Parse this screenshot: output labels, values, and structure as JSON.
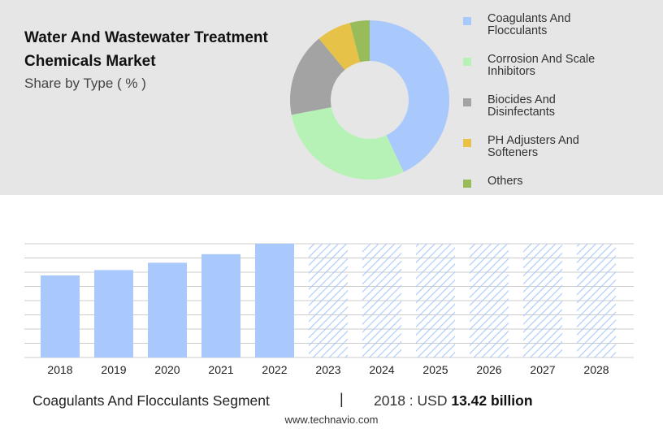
{
  "header": {
    "title": "Water And Wastewater Treatment Chemicals Market",
    "subtitle": "Share by Type ( % )"
  },
  "colors": {
    "panel_bg": "#e6e6e6",
    "bar_actual": "#a9c8fc",
    "bar_forecast_hatch": "#a9c8fc",
    "grid": "#cccccc"
  },
  "chart_data": [
    {
      "type": "pie",
      "variant": "donut",
      "title": "Share by Type ( % )",
      "labels": [
        "Coagulants And Flocculants",
        "Corrosion And Scale Inhibitors",
        "Biocides And Disinfectants",
        "PH Adjusters And Softeners",
        "Others"
      ],
      "values": [
        43,
        29,
        17,
        7,
        4
      ],
      "colors": [
        "#a9c8fc",
        "#b6f2b6",
        "#a3a3a3",
        "#e6c248",
        "#98bc5a"
      ],
      "legend": "right"
    },
    {
      "type": "bar",
      "title": "Coagulants And Flocculants Segment",
      "categories": [
        "2018",
        "2019",
        "2020",
        "2021",
        "2022",
        "2023",
        "2024",
        "2025",
        "2026",
        "2027",
        "2028"
      ],
      "values": [
        13.42,
        14.3,
        15.5,
        16.9,
        18.6,
        18.6,
        18.6,
        18.6,
        18.6,
        18.6,
        18.6
      ],
      "forecast": [
        false,
        false,
        false,
        false,
        false,
        true,
        true,
        true,
        true,
        true,
        true
      ],
      "ylim": [
        0,
        18.6
      ],
      "grid": true,
      "xlabel": "",
      "ylabel": ""
    }
  ],
  "footer": {
    "segment_label": "Coagulants And Flocculants Segment",
    "separator": "|",
    "value_prefix": "2018 : USD",
    "value_bold": "13.42 billion",
    "website": "www.technavio.com"
  }
}
